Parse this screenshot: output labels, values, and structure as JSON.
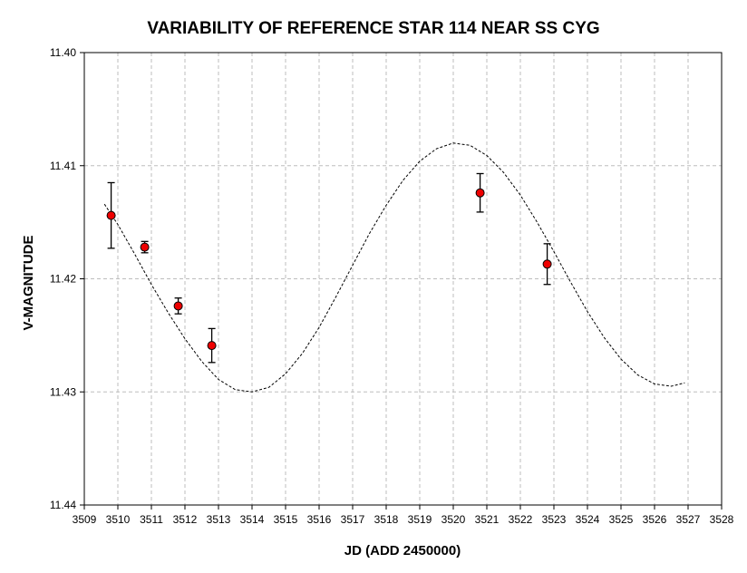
{
  "chart_data": {
    "type": "scatter",
    "title": "VARIABILITY OF REFERENCE STAR 114 NEAR SS CYG",
    "xlabel": "JD (ADD 2450000)",
    "ylabel": "V-MAGNITUDE",
    "xlim": [
      3509,
      3528
    ],
    "ylim": [
      11.4,
      11.44
    ],
    "y_inverted": true,
    "grid": true,
    "x_ticks": [
      "3509",
      "3510",
      "3511",
      "3512",
      "3513",
      "3514",
      "3515",
      "3516",
      "3517",
      "3518",
      "3519",
      "3520",
      "3521",
      "3522",
      "3523",
      "3524",
      "3525",
      "3526",
      "3527",
      "3528"
    ],
    "y_ticks": [
      "11.40",
      "11.41",
      "11.42",
      "11.43",
      "11.44"
    ],
    "colors": {
      "point": "#ee0000",
      "curve": "#000000",
      "grid": "#bdbdbd"
    },
    "series": [
      {
        "type": "scatter",
        "points": [
          {
            "x": 3509.8,
            "y": 11.4144,
            "err": 0.0029
          },
          {
            "x": 3510.8,
            "y": 11.4172,
            "err": 0.0005
          },
          {
            "x": 3511.8,
            "y": 11.4224,
            "err": 0.0007
          },
          {
            "x": 3512.8,
            "y": 11.4259,
            "err": 0.0015
          },
          {
            "x": 3520.8,
            "y": 11.4124,
            "err": 0.0017
          },
          {
            "x": 3522.8,
            "y": 11.4187,
            "err": 0.0018
          }
        ]
      },
      {
        "type": "line",
        "style": "dashed",
        "x": [
          3509.6,
          3510.0,
          3510.5,
          3511.0,
          3511.5,
          3512.0,
          3512.5,
          3513.0,
          3513.5,
          3514.0,
          3514.5,
          3515.0,
          3515.5,
          3516.0,
          3516.5,
          3517.0,
          3517.5,
          3518.0,
          3518.5,
          3519.0,
          3519.5,
          3520.0,
          3520.5,
          3521.0,
          3521.5,
          3522.0,
          3522.5,
          3523.0,
          3523.5,
          3524.0,
          3524.5,
          3525.0,
          3525.5,
          3526.0,
          3526.5,
          3526.9
        ],
        "y": [
          11.4134,
          11.4152,
          11.4178,
          11.4205,
          11.423,
          11.4253,
          11.4273,
          11.4289,
          11.4298,
          11.43,
          11.4296,
          11.4284,
          11.4266,
          11.4243,
          11.4216,
          11.4188,
          11.416,
          11.4135,
          11.4113,
          11.4096,
          11.4085,
          11.408,
          11.4082,
          11.4091,
          11.4106,
          11.4126,
          11.415,
          11.4176,
          11.4203,
          11.4229,
          11.4252,
          11.4271,
          11.4285,
          11.4293,
          11.4295,
          11.4292
        ]
      }
    ]
  }
}
